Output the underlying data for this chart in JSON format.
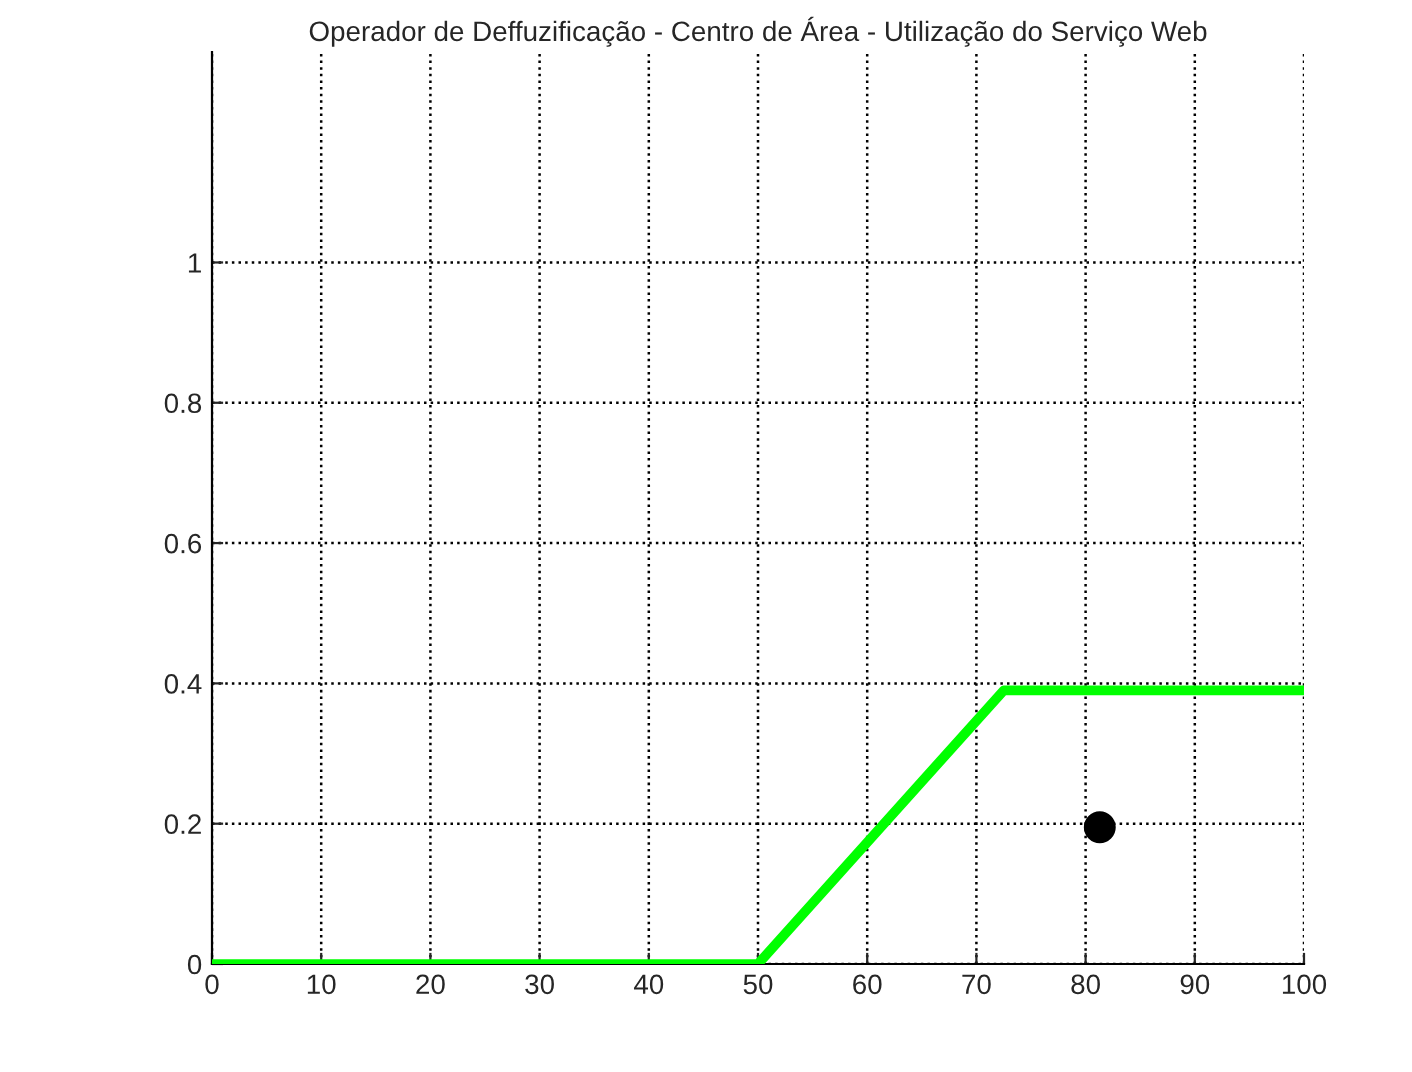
{
  "chart_data": {
    "type": "line",
    "title": "Operador de Deffuzificação - Centro de Área - Utilização do Serviço Web",
    "series": [
      {
        "color": "#00ff00",
        "x": [
          0,
          50,
          72.5,
          100
        ],
        "values": [
          0,
          0,
          0.39,
          0.39
        ],
        "marker": "none",
        "line_style": "solid"
      },
      {
        "type": "scatter",
        "color": "#000000",
        "x": [
          81.3
        ],
        "values": [
          0.195
        ],
        "marker": "circle"
      }
    ],
    "xlim": [
      0,
      100
    ],
    "xticks": [
      0,
      10,
      20,
      30,
      40,
      50,
      60,
      70,
      80,
      90,
      100
    ],
    "ylim": [
      0,
      1.3
    ],
    "yticks": [
      0,
      0.2,
      0.4,
      0.6,
      0.8,
      1
    ],
    "grid": true,
    "legend": false
  }
}
